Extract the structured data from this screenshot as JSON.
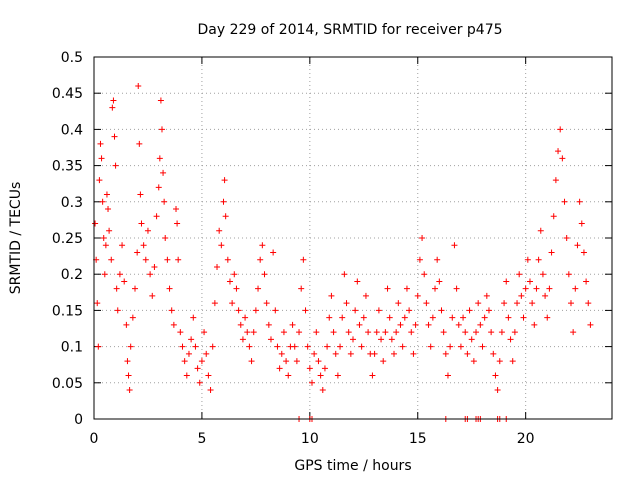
{
  "chart_data": {
    "type": "scatter",
    "title": "Day 229 of 2014, SRMTID for receiver p475",
    "xlabel": "GPS time / hours",
    "ylabel": "SRMTID / TECUs",
    "xlim": [
      0,
      24
    ],
    "ylim": [
      0,
      0.5
    ],
    "xticks": [
      0,
      5,
      10,
      15,
      20
    ],
    "xtick_labels": [
      "0",
      "5",
      "10",
      "15",
      "20"
    ],
    "yticks": [
      0,
      0.05,
      0.1,
      0.15,
      0.2,
      0.25,
      0.3,
      0.35,
      0.4,
      0.45,
      0.5
    ],
    "ytick_labels": [
      "0",
      "0.05",
      "0.1",
      "0.15",
      "0.2",
      "0.25",
      "0.3",
      "0.35",
      "0.4",
      "0.45",
      "0.5"
    ],
    "grid": true,
    "marker": "plus",
    "color": "#ff0000",
    "series": [
      {
        "name": "SRMTID",
        "points": [
          [
            0.05,
            0.27
          ],
          [
            0.1,
            0.22
          ],
          [
            0.15,
            0.16
          ],
          [
            0.2,
            0.1
          ],
          [
            0.25,
            0.33
          ],
          [
            0.3,
            0.38
          ],
          [
            0.35,
            0.36
          ],
          [
            0.4,
            0.3
          ],
          [
            0.45,
            0.25
          ],
          [
            0.5,
            0.2
          ],
          [
            0.55,
            0.24
          ],
          [
            0.6,
            0.31
          ],
          [
            0.65,
            0.29
          ],
          [
            0.7,
            0.26
          ],
          [
            0.8,
            0.22
          ],
          [
            0.85,
            0.43
          ],
          [
            0.9,
            0.44
          ],
          [
            0.95,
            0.39
          ],
          [
            1.0,
            0.35
          ],
          [
            1.05,
            0.18
          ],
          [
            1.1,
            0.15
          ],
          [
            1.2,
            0.2
          ],
          [
            1.3,
            0.24
          ],
          [
            1.4,
            0.19
          ],
          [
            1.5,
            0.13
          ],
          [
            1.55,
            0.08
          ],
          [
            1.6,
            0.06
          ],
          [
            1.65,
            0.04
          ],
          [
            1.7,
            0.1
          ],
          [
            1.8,
            0.14
          ],
          [
            1.9,
            0.18
          ],
          [
            2.0,
            0.23
          ],
          [
            2.05,
            0.46
          ],
          [
            2.1,
            0.38
          ],
          [
            2.15,
            0.31
          ],
          [
            2.2,
            0.27
          ],
          [
            2.3,
            0.24
          ],
          [
            2.4,
            0.22
          ],
          [
            2.5,
            0.26
          ],
          [
            2.6,
            0.2
          ],
          [
            2.7,
            0.17
          ],
          [
            2.8,
            0.21
          ],
          [
            2.9,
            0.28
          ],
          [
            3.0,
            0.32
          ],
          [
            3.05,
            0.36
          ],
          [
            3.1,
            0.44
          ],
          [
            3.15,
            0.4
          ],
          [
            3.2,
            0.34
          ],
          [
            3.25,
            0.3
          ],
          [
            3.3,
            0.25
          ],
          [
            3.4,
            0.22
          ],
          [
            3.5,
            0.18
          ],
          [
            3.6,
            0.15
          ],
          [
            3.7,
            0.13
          ],
          [
            3.8,
            0.29
          ],
          [
            3.85,
            0.27
          ],
          [
            3.9,
            0.22
          ],
          [
            4.0,
            0.12
          ],
          [
            4.1,
            0.1
          ],
          [
            4.2,
            0.08
          ],
          [
            4.3,
            0.06
          ],
          [
            4.4,
            0.09
          ],
          [
            4.5,
            0.11
          ],
          [
            4.6,
            0.14
          ],
          [
            4.7,
            0.1
          ],
          [
            4.8,
            0.07
          ],
          [
            4.9,
            0.05
          ],
          [
            5.0,
            0.08
          ],
          [
            5.1,
            0.12
          ],
          [
            5.2,
            0.09
          ],
          [
            5.3,
            0.06
          ],
          [
            5.4,
            0.04
          ],
          [
            5.5,
            0.1
          ],
          [
            5.6,
            0.16
          ],
          [
            5.7,
            0.21
          ],
          [
            5.8,
            0.26
          ],
          [
            5.9,
            0.24
          ],
          [
            6.0,
            0.3
          ],
          [
            6.05,
            0.33
          ],
          [
            6.1,
            0.28
          ],
          [
            6.2,
            0.22
          ],
          [
            6.3,
            0.19
          ],
          [
            6.4,
            0.16
          ],
          [
            6.5,
            0.2
          ],
          [
            6.6,
            0.18
          ],
          [
            6.7,
            0.15
          ],
          [
            6.8,
            0.13
          ],
          [
            6.9,
            0.11
          ],
          [
            7.0,
            0.14
          ],
          [
            7.1,
            0.12
          ],
          [
            7.2,
            0.1
          ],
          [
            7.3,
            0.08
          ],
          [
            7.4,
            0.12
          ],
          [
            7.5,
            0.15
          ],
          [
            7.6,
            0.18
          ],
          [
            7.7,
            0.22
          ],
          [
            7.8,
            0.24
          ],
          [
            7.9,
            0.2
          ],
          [
            8.0,
            0.16
          ],
          [
            8.1,
            0.13
          ],
          [
            8.2,
            0.11
          ],
          [
            8.3,
            0.23
          ],
          [
            8.4,
            0.15
          ],
          [
            8.5,
            0.1
          ],
          [
            8.6,
            0.07
          ],
          [
            8.7,
            0.09
          ],
          [
            8.8,
            0.12
          ],
          [
            8.9,
            0.08
          ],
          [
            9.0,
            0.06
          ],
          [
            9.1,
            0.1
          ],
          [
            9.2,
            0.13
          ],
          [
            9.3,
            0.1
          ],
          [
            9.4,
            0.08
          ],
          [
            9.5,
            0.12
          ],
          [
            9.6,
            0.18
          ],
          [
            9.7,
            0.22
          ],
          [
            9.8,
            0.15
          ],
          [
            9.9,
            0.1
          ],
          [
            10.0,
            0.07
          ],
          [
            10.1,
            0.05
          ],
          [
            10.2,
            0.09
          ],
          [
            10.3,
            0.12
          ],
          [
            10.4,
            0.08
          ],
          [
            10.5,
            0.06
          ],
          [
            10.6,
            0.04
          ],
          [
            10.7,
            0.07
          ],
          [
            10.8,
            0.1
          ],
          [
            10.9,
            0.14
          ],
          [
            11.0,
            0.17
          ],
          [
            11.1,
            0.12
          ],
          [
            11.2,
            0.09
          ],
          [
            11.3,
            0.06
          ],
          [
            11.4,
            0.1
          ],
          [
            11.5,
            0.14
          ],
          [
            11.6,
            0.2
          ],
          [
            11.7,
            0.16
          ],
          [
            11.8,
            0.12
          ],
          [
            11.9,
            0.09
          ],
          [
            12.0,
            0.11
          ],
          [
            12.1,
            0.15
          ],
          [
            12.2,
            0.19
          ],
          [
            12.3,
            0.13
          ],
          [
            12.4,
            0.1
          ],
          [
            12.5,
            0.14
          ],
          [
            12.6,
            0.17
          ],
          [
            12.7,
            0.12
          ],
          [
            12.8,
            0.09
          ],
          [
            12.9,
            0.06
          ],
          [
            13.0,
            0.09
          ],
          [
            13.1,
            0.12
          ],
          [
            13.2,
            0.15
          ],
          [
            13.3,
            0.11
          ],
          [
            13.4,
            0.08
          ],
          [
            13.5,
            0.12
          ],
          [
            13.6,
            0.18
          ],
          [
            13.7,
            0.14
          ],
          [
            13.8,
            0.11
          ],
          [
            13.9,
            0.09
          ],
          [
            14.0,
            0.12
          ],
          [
            14.1,
            0.16
          ],
          [
            14.2,
            0.13
          ],
          [
            14.3,
            0.1
          ],
          [
            14.4,
            0.14
          ],
          [
            14.5,
            0.18
          ],
          [
            14.6,
            0.15
          ],
          [
            14.7,
            0.12
          ],
          [
            14.8,
            0.09
          ],
          [
            14.9,
            0.13
          ],
          [
            15.0,
            0.17
          ],
          [
            15.1,
            0.22
          ],
          [
            15.2,
            0.25
          ],
          [
            15.3,
            0.2
          ],
          [
            15.4,
            0.16
          ],
          [
            15.5,
            0.13
          ],
          [
            15.6,
            0.1
          ],
          [
            15.7,
            0.14
          ],
          [
            15.8,
            0.18
          ],
          [
            15.9,
            0.22
          ],
          [
            16.0,
            0.19
          ],
          [
            16.1,
            0.15
          ],
          [
            16.2,
            0.12
          ],
          [
            16.3,
            0.09
          ],
          [
            16.4,
            0.06
          ],
          [
            16.5,
            0.1
          ],
          [
            16.6,
            0.14
          ],
          [
            16.7,
            0.24
          ],
          [
            16.8,
            0.18
          ],
          [
            16.9,
            0.13
          ],
          [
            17.0,
            0.1
          ],
          [
            17.1,
            0.14
          ],
          [
            17.2,
            0.12
          ],
          [
            17.3,
            0.09
          ],
          [
            17.4,
            0.15
          ],
          [
            17.5,
            0.11
          ],
          [
            17.6,
            0.08
          ],
          [
            17.7,
            0.12
          ],
          [
            17.8,
            0.16
          ],
          [
            17.9,
            0.13
          ],
          [
            18.0,
            0.1
          ],
          [
            18.1,
            0.14
          ],
          [
            18.2,
            0.17
          ],
          [
            18.3,
            0.15
          ],
          [
            18.4,
            0.12
          ],
          [
            18.5,
            0.09
          ],
          [
            18.6,
            0.06
          ],
          [
            18.7,
            0.04
          ],
          [
            18.8,
            0.08
          ],
          [
            18.9,
            0.12
          ],
          [
            19.0,
            0.16
          ],
          [
            19.1,
            0.19
          ],
          [
            19.2,
            0.14
          ],
          [
            19.3,
            0.11
          ],
          [
            19.4,
            0.08
          ],
          [
            19.5,
            0.12
          ],
          [
            19.6,
            0.16
          ],
          [
            19.7,
            0.2
          ],
          [
            19.8,
            0.17
          ],
          [
            19.9,
            0.14
          ],
          [
            20.0,
            0.18
          ],
          [
            20.1,
            0.22
          ],
          [
            20.2,
            0.19
          ],
          [
            20.3,
            0.16
          ],
          [
            20.4,
            0.13
          ],
          [
            20.5,
            0.18
          ],
          [
            20.6,
            0.22
          ],
          [
            20.7,
            0.26
          ],
          [
            20.8,
            0.2
          ],
          [
            20.9,
            0.17
          ],
          [
            21.0,
            0.14
          ],
          [
            21.1,
            0.18
          ],
          [
            21.2,
            0.23
          ],
          [
            21.3,
            0.28
          ],
          [
            21.4,
            0.33
          ],
          [
            21.5,
            0.37
          ],
          [
            21.6,
            0.4
          ],
          [
            21.7,
            0.36
          ],
          [
            21.8,
            0.3
          ],
          [
            21.9,
            0.25
          ],
          [
            22.0,
            0.2
          ],
          [
            22.1,
            0.16
          ],
          [
            22.2,
            0.12
          ],
          [
            22.3,
            0.18
          ],
          [
            22.4,
            0.24
          ],
          [
            22.5,
            0.3
          ],
          [
            22.6,
            0.27
          ],
          [
            22.7,
            0.23
          ],
          [
            22.8,
            0.19
          ],
          [
            22.9,
            0.16
          ],
          [
            23.0,
            0.13
          ],
          [
            9.5,
            0.0
          ],
          [
            10.0,
            0.0
          ],
          [
            10.1,
            0.0
          ],
          [
            16.3,
            0.0
          ],
          [
            17.2,
            0.0
          ],
          [
            17.3,
            0.0
          ],
          [
            17.7,
            0.0
          ],
          [
            17.8,
            0.0
          ],
          [
            17.9,
            0.0
          ],
          [
            18.7,
            0.0
          ],
          [
            18.8,
            0.0
          ],
          [
            19.1,
            0.0
          ]
        ]
      }
    ]
  }
}
